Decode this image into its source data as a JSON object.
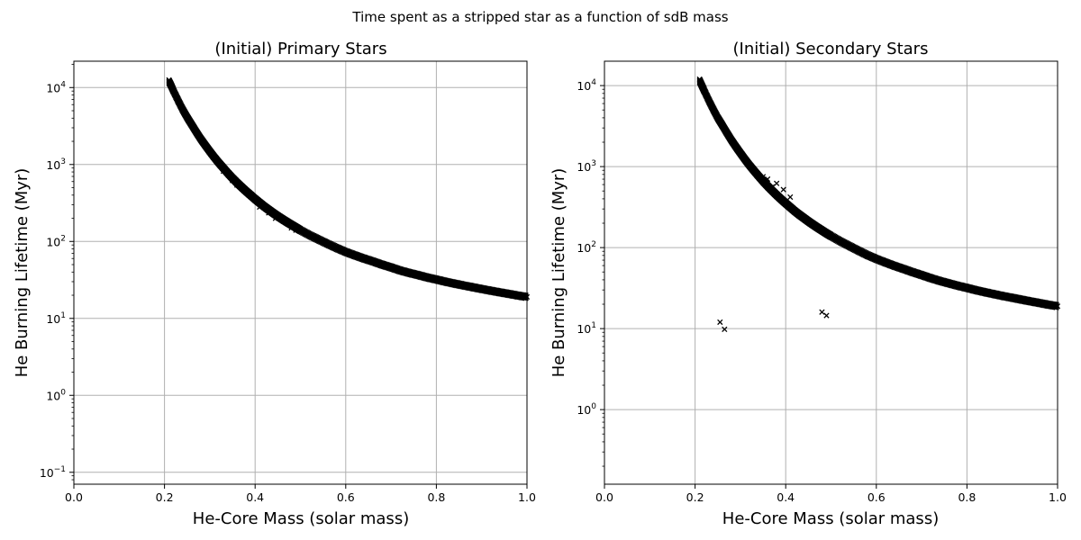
{
  "figure": {
    "suptitle": "Time spent as a stripped star as a function of sdB mass",
    "colors": {
      "marker": "#000000",
      "grid": "#b0b0b0",
      "background": "#ffffff"
    },
    "marker": "x"
  },
  "chart_data": [
    {
      "type": "scatter",
      "title": "(Initial) Primary Stars",
      "xlabel": "He-Core Mass (solar mass)",
      "ylabel": "He Burning Lifetime (Myr)",
      "xlim": [
        0.0,
        1.0
      ],
      "ylim": [
        0.07,
        22000
      ],
      "yscale": "log",
      "grid": true,
      "xticks": [
        "0.0",
        "0.2",
        "0.4",
        "0.6",
        "0.8",
        "1.0"
      ],
      "yticks": [
        {
          "value": 0.1,
          "mantissa": "10",
          "exponent": "−1"
        },
        {
          "value": 1,
          "mantissa": "10",
          "exponent": "0"
        },
        {
          "value": 10,
          "mantissa": "10",
          "exponent": "1"
        },
        {
          "value": 100,
          "mantissa": "10",
          "exponent": "2"
        },
        {
          "value": 1000,
          "mantissa": "10",
          "exponent": "3"
        },
        {
          "value": 10000,
          "mantissa": "10",
          "exponent": "4"
        }
      ],
      "series_x": [
        0.21,
        0.215,
        0.22,
        0.23,
        0.24,
        0.25,
        0.26,
        0.27,
        0.28,
        0.29,
        0.3,
        0.31,
        0.32,
        0.33,
        0.34,
        0.35,
        0.36,
        0.37,
        0.38,
        0.39,
        0.4,
        0.41,
        0.42,
        0.43,
        0.44,
        0.45,
        0.46,
        0.47,
        0.48,
        0.49,
        0.5,
        0.52,
        0.54,
        0.56,
        0.58,
        0.6,
        0.62,
        0.64,
        0.66,
        0.68,
        0.7,
        0.72,
        0.74,
        0.76,
        0.78,
        0.8,
        0.82,
        0.84,
        0.86,
        0.88,
        0.9,
        0.92,
        0.94,
        0.96,
        0.98,
        1.0
      ],
      "series_y": [
        12000,
        10500,
        9000,
        6800,
        5200,
        4100,
        3300,
        2650,
        2150,
        1780,
        1480,
        1240,
        1050,
        900,
        770,
        665,
        580,
        510,
        450,
        400,
        355,
        318,
        285,
        258,
        234,
        213,
        195,
        179,
        165,
        152,
        140,
        121,
        106,
        93,
        82,
        73,
        66,
        60,
        55,
        50,
        46,
        42,
        39,
        36.5,
        34,
        32,
        30,
        28.3,
        26.8,
        25.4,
        24.1,
        22.9,
        21.8,
        20.8,
        19.8,
        19
      ],
      "scatter_points": [
        {
          "x": 0.33,
          "y": 820
        },
        {
          "x": 0.35,
          "y": 620
        },
        {
          "x": 0.36,
          "y": 540
        },
        {
          "x": 0.39,
          "y": 390
        },
        {
          "x": 0.41,
          "y": 280
        },
        {
          "x": 0.43,
          "y": 235
        },
        {
          "x": 0.445,
          "y": 200
        },
        {
          "x": 0.46,
          "y": 195
        },
        {
          "x": 0.48,
          "y": 150
        },
        {
          "x": 0.49,
          "y": 140
        },
        {
          "x": 0.51,
          "y": 130
        }
      ]
    },
    {
      "type": "scatter",
      "title": "(Initial) Secondary Stars",
      "xlabel": "He-Core Mass (solar mass)",
      "ylabel": "He Burning Lifetime (Myr)",
      "xlim": [
        0.0,
        1.0
      ],
      "ylim": [
        0.12,
        20000
      ],
      "yscale": "log",
      "grid": true,
      "xticks": [
        "0.0",
        "0.2",
        "0.4",
        "0.6",
        "0.8",
        "1.0"
      ],
      "yticks": [
        {
          "value": 1,
          "mantissa": "10",
          "exponent": "0"
        },
        {
          "value": 10,
          "mantissa": "10",
          "exponent": "1"
        },
        {
          "value": 100,
          "mantissa": "10",
          "exponent": "2"
        },
        {
          "value": 1000,
          "mantissa": "10",
          "exponent": "3"
        },
        {
          "value": 10000,
          "mantissa": "10",
          "exponent": "4"
        }
      ],
      "series_x": [
        0.21,
        0.215,
        0.22,
        0.23,
        0.24,
        0.25,
        0.26,
        0.27,
        0.28,
        0.29,
        0.3,
        0.31,
        0.32,
        0.33,
        0.34,
        0.35,
        0.36,
        0.37,
        0.38,
        0.39,
        0.4,
        0.41,
        0.42,
        0.43,
        0.44,
        0.45,
        0.46,
        0.47,
        0.48,
        0.49,
        0.5,
        0.52,
        0.54,
        0.56,
        0.58,
        0.6,
        0.62,
        0.64,
        0.66,
        0.68,
        0.7,
        0.72,
        0.74,
        0.76,
        0.78,
        0.8,
        0.82,
        0.84,
        0.86,
        0.88,
        0.9,
        0.92,
        0.94,
        0.96,
        0.98,
        1.0
      ],
      "series_y": [
        11500,
        10000,
        8700,
        6600,
        5100,
        4000,
        3250,
        2620,
        2130,
        1760,
        1470,
        1230,
        1040,
        890,
        765,
        660,
        575,
        505,
        445,
        395,
        352,
        315,
        282,
        255,
        232,
        211,
        193,
        177,
        163,
        150,
        139,
        120,
        105,
        92,
        81,
        72.5,
        65.5,
        59.5,
        54.5,
        49.8,
        45.8,
        42,
        38.8,
        36.2,
        33.8,
        31.8,
        29.8,
        28.1,
        26.6,
        25.2,
        24,
        22.8,
        21.7,
        20.7,
        19.7,
        18.9
      ],
      "scatter_points": [
        {
          "x": 0.255,
          "y": 12
        },
        {
          "x": 0.265,
          "y": 9.8
        },
        {
          "x": 0.48,
          "y": 16
        },
        {
          "x": 0.49,
          "y": 14.5
        },
        {
          "x": 0.36,
          "y": 700
        },
        {
          "x": 0.38,
          "y": 620
        },
        {
          "x": 0.395,
          "y": 520
        },
        {
          "x": 0.41,
          "y": 420
        },
        {
          "x": 0.37,
          "y": 560
        },
        {
          "x": 0.35,
          "y": 750
        }
      ]
    }
  ]
}
